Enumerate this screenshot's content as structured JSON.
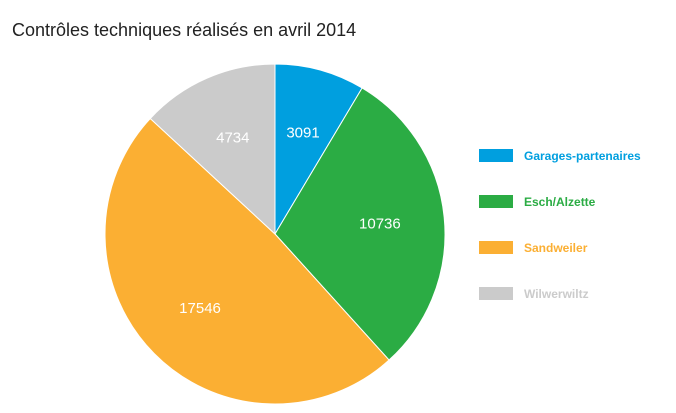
{
  "chart_data": {
    "type": "pie",
    "title": "Contrôles techniques réalisés en avril 2014",
    "legend_position": "right",
    "slices": [
      {
        "label": "Garages-partenaires",
        "legend_text": "Garages-partenaires",
        "value": 3091,
        "value_label": "3091",
        "color": "#009fdf"
      },
      {
        "label": "Esch/Alzette",
        "legend_text": " Esch/Alzette",
        "value": 10736,
        "value_label": "10736",
        "color": "#2bac44"
      },
      {
        "label": "Sandweiler",
        "legend_text": "Sandweiler",
        "value": 17546,
        "value_label": "17546",
        "color": "#fbaf33"
      },
      {
        "label": "Wilwerwiltz",
        "legend_text": "Wilwerwiltz",
        "value": 4734,
        "value_label": "4734",
        "color": "#cbcbcb"
      }
    ]
  }
}
